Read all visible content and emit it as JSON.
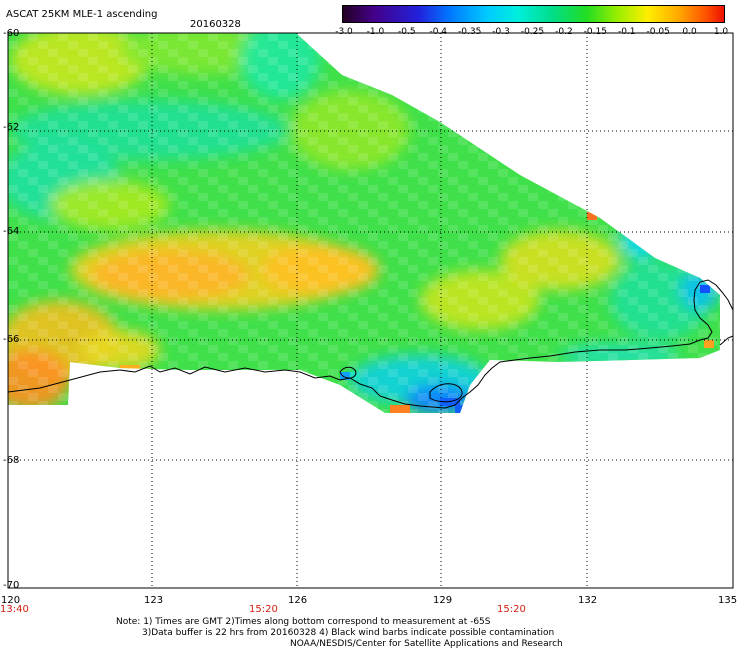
{
  "header": {
    "title": "ASCAT 25KM MLE-1 ascending",
    "date": "20160328"
  },
  "colorbar": {
    "labels": [
      "-3.0",
      "-1.0",
      "-0.5",
      "-0.4",
      "-0.35",
      "-0.3",
      "-0.25",
      "-0.2",
      "-0.15",
      "-0.1",
      "-0.05",
      "0.0",
      "1.0"
    ],
    "colors": [
      "#220022",
      "#440088",
      "#2222dd",
      "#0077ff",
      "#00bbff",
      "#00eedd",
      "#00dd88",
      "#22dd22",
      "#99ee00",
      "#ffee00",
      "#ffaa00",
      "#ff5500",
      "#ee1100"
    ]
  },
  "map": {
    "lat_labels": [
      "-60",
      "-62",
      "-64",
      "-66",
      "-68",
      "-70"
    ],
    "lon_labels": [
      "120",
      "123",
      "126",
      "129",
      "132",
      "135"
    ],
    "time_labels": [
      "13:40",
      "15:20",
      "15:20"
    ],
    "lon_range": [
      120,
      135
    ],
    "lat_range": [
      -60,
      -70
    ],
    "grid": true
  },
  "footer": {
    "line1": "Note: 1) Times are GMT 2)Times along bottom correspond to measurement at -65S",
    "line2": "3)Data buffer is 22 hrs from 20160328 4) Black wind barbs indicate possible contamination",
    "line3": "NOAA/NESDIS/Center for Satellite Applications and Research"
  }
}
